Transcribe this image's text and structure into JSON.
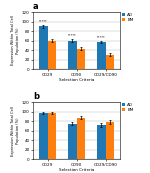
{
  "chart_data": [
    {
      "type": "bar",
      "title": "a",
      "categories": [
        "CD29",
        "CD90",
        "CD29/CD90"
      ],
      "series": [
        {
          "name": "AO",
          "values": [
            90,
            60,
            57
          ],
          "errors": [
            3,
            3,
            3
          ]
        },
        {
          "name": "BM",
          "values": [
            60,
            43,
            30
          ],
          "errors": [
            3,
            3,
            3
          ]
        }
      ],
      "annotations": [
        "*****",
        "*****",
        "*****"
      ],
      "ylim": [
        0,
        120
      ],
      "yticks": [
        0,
        20,
        40,
        60,
        80,
        100,
        120
      ],
      "y_label": "Expression Within Total Cell\nPopulation (%)",
      "x_label": "Selection Criteria",
      "grid": true,
      "legend": "upper left"
    },
    {
      "type": "bar",
      "title": "b",
      "categories": [
        "CD29",
        "CD90",
        "CD29/CD90"
      ],
      "series": [
        {
          "name": "AO",
          "values": [
            97,
            75,
            72
          ],
          "errors": [
            2,
            3,
            4
          ]
        },
        {
          "name": "BM",
          "values": [
            97,
            87,
            78
          ],
          "errors": [
            2,
            3,
            4
          ]
        }
      ],
      "ylim": [
        0,
        120
      ],
      "yticks": [
        0,
        20,
        40,
        60,
        80,
        100,
        120
      ],
      "y_label": "Expression Within Total Cell\nPopulation (%)",
      "x_label": "Selection Criteria",
      "grid": true,
      "legend": "upper left"
    }
  ]
}
